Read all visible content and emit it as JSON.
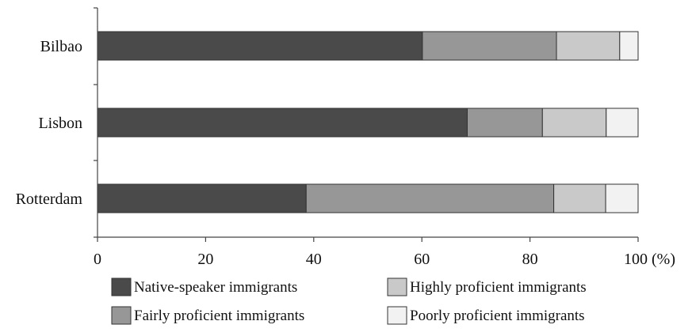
{
  "chart_data": {
    "type": "bar",
    "orientation": "horizontal",
    "stacked": true,
    "categories": [
      "Bilbao",
      "Lisbon",
      "Rotterdam"
    ],
    "series": [
      {
        "name": "Native-speaker immigrants",
        "values": [
          60.1,
          68.4,
          38.6
        ],
        "color": "#4a4a4a"
      },
      {
        "name": "Fairly proficient immigrants",
        "values": [
          24.8,
          13.9,
          45.8
        ],
        "color": "#979797"
      },
      {
        "name": "Highly proficient immigrants",
        "values": [
          11.7,
          11.8,
          9.6
        ],
        "color": "#c9c9c9"
      },
      {
        "name": "Poorly proficient immigrants",
        "values": [
          3.4,
          5.9,
          6.0
        ],
        "color": "#f2f2f2"
      }
    ],
    "xlim": [
      0,
      100
    ],
    "xticks": [
      "0",
      "20",
      "40",
      "60",
      "80",
      "100 (%)"
    ],
    "grid": false,
    "legend_position": "bottom"
  }
}
